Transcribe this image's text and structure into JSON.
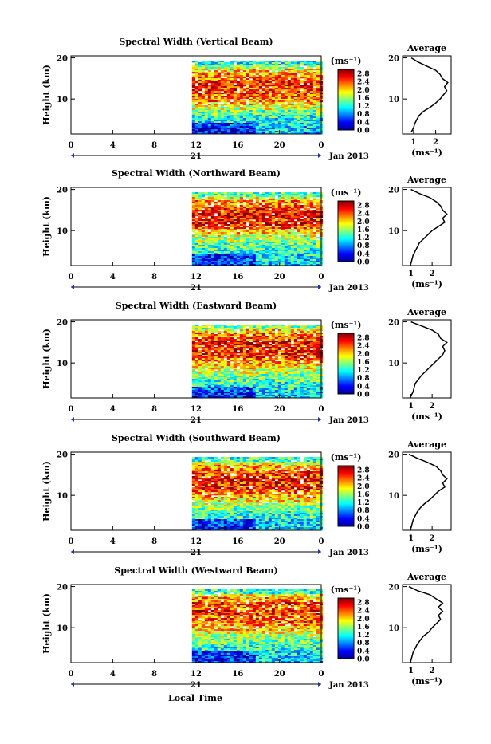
{
  "figure": {
    "x_axis_label": "Local Time",
    "height_label": "Height (km)",
    "unit_label": "(ms⁻¹)",
    "avg_title": "Average",
    "date_label": "Jan 2013",
    "day_label": "21"
  },
  "chart_data": [
    {
      "type": "heatmap",
      "title": "Spectral Width (Vertical Beam)",
      "xlabel": "Local Time",
      "ylabel": "Height (km)",
      "x_ticks": [
        "0",
        "4",
        "8",
        "12",
        "16",
        "20",
        "0"
      ],
      "y_ticks": [
        "20",
        "10"
      ],
      "xlim": [
        0,
        24
      ],
      "ylim": [
        1.5,
        20.5
      ],
      "data_start_hour": 11.6,
      "colorbar": {
        "label": "(ms⁻¹)",
        "range": [
          0.0,
          3.0
        ],
        "ticks": [
          "2.8",
          "2.4",
          "2.0",
          "1.6",
          "1.2",
          "0.8",
          "0.4",
          "0.0"
        ]
      },
      "average_profile": {
        "title": "Average",
        "xlabel": "(ms⁻¹)",
        "x_ticks": [
          "1",
          "2"
        ],
        "xlim": [
          0.5,
          2.7
        ],
        "height_km": [
          2,
          3,
          4,
          5,
          6,
          7,
          8,
          9,
          10,
          11,
          12,
          13,
          14,
          15,
          16,
          17,
          18,
          19,
          20
        ],
        "width_ms": [
          0.9,
          1.0,
          1.05,
          1.15,
          1.25,
          1.45,
          1.75,
          2.0,
          2.2,
          2.35,
          2.5,
          2.4,
          2.55,
          2.3,
          2.2,
          2.0,
          1.6,
          1.2,
          0.9
        ]
      }
    },
    {
      "type": "heatmap",
      "title": "Spectral Width (Northward Beam)",
      "xlabel": "Local Time",
      "ylabel": "Height (km)",
      "x_ticks": [
        "0",
        "4",
        "8",
        "12",
        "16",
        "20",
        "0"
      ],
      "y_ticks": [
        "20",
        "10"
      ],
      "xlim": [
        0,
        24
      ],
      "ylim": [
        1.5,
        20.5
      ],
      "data_start_hour": 11.6,
      "colorbar": {
        "label": "(ms⁻¹)",
        "range": [
          0.0,
          3.0
        ],
        "ticks": [
          "2.8",
          "2.4",
          "2.0",
          "1.6",
          "1.2",
          "0.8",
          "0.4",
          "0.0"
        ]
      },
      "average_profile": {
        "title": "Average",
        "xlabel": "(ms⁻¹)",
        "x_ticks": [
          "1",
          "2"
        ],
        "xlim": [
          0.6,
          2.9
        ],
        "height_km": [
          2,
          3,
          4,
          5,
          6,
          7,
          8,
          9,
          10,
          11,
          12,
          13,
          14,
          15,
          16,
          17,
          18,
          19,
          20
        ],
        "width_ms": [
          1.0,
          1.05,
          1.1,
          1.2,
          1.3,
          1.4,
          1.6,
          1.8,
          2.0,
          2.3,
          2.6,
          2.5,
          2.7,
          2.5,
          2.4,
          2.2,
          1.9,
          1.4,
          1.0
        ]
      }
    },
    {
      "type": "heatmap",
      "title": "Spectral Width (Eastward Beam)",
      "xlabel": "Local Time",
      "ylabel": "Height (km)",
      "x_ticks": [
        "0",
        "4",
        "8",
        "12",
        "16",
        "20",
        "0"
      ],
      "y_ticks": [
        "20",
        "10"
      ],
      "xlim": [
        0,
        24
      ],
      "ylim": [
        1.5,
        20.5
      ],
      "data_start_hour": 11.6,
      "colorbar": {
        "label": "(ms⁻¹)",
        "range": [
          0.0,
          3.0
        ],
        "ticks": [
          "2.8",
          "2.4",
          "2.0",
          "1.6",
          "1.2",
          "0.8",
          "0.4",
          "0.0"
        ]
      },
      "average_profile": {
        "title": "Average",
        "xlabel": "(ms⁻¹)",
        "x_ticks": [
          "1",
          "2"
        ],
        "xlim": [
          0.6,
          2.9
        ],
        "height_km": [
          2,
          3,
          4,
          5,
          6,
          7,
          8,
          9,
          10,
          11,
          12,
          13,
          14,
          15,
          16,
          17,
          18,
          19,
          20
        ],
        "width_ms": [
          1.0,
          1.1,
          1.15,
          1.2,
          1.35,
          1.5,
          1.7,
          1.9,
          2.1,
          2.3,
          2.5,
          2.6,
          2.5,
          2.7,
          2.4,
          2.3,
          2.0,
          1.5,
          1.0
        ]
      }
    },
    {
      "type": "heatmap",
      "title": "Spectral Width (Southward Beam)",
      "xlabel": "Local Time",
      "ylabel": "Height (km)",
      "x_ticks": [
        "0",
        "4",
        "8",
        "12",
        "16",
        "20",
        "0"
      ],
      "y_ticks": [
        "20",
        "10"
      ],
      "xlim": [
        0,
        24
      ],
      "ylim": [
        1.5,
        20.5
      ],
      "data_start_hour": 11.6,
      "colorbar": {
        "label": "(ms⁻¹)",
        "range": [
          0.0,
          3.0
        ],
        "ticks": [
          "2.8",
          "2.4",
          "2.0",
          "1.6",
          "1.2",
          "0.8",
          "0.4",
          "0.0"
        ]
      },
      "average_profile": {
        "title": "Average",
        "xlabel": "(ms⁻¹)",
        "x_ticks": [
          "1",
          "2"
        ],
        "xlim": [
          0.6,
          2.9
        ],
        "height_km": [
          2,
          3,
          4,
          5,
          6,
          7,
          8,
          9,
          10,
          11,
          12,
          13,
          14,
          15,
          16,
          17,
          18,
          19,
          20
        ],
        "width_ms": [
          1.0,
          1.05,
          1.1,
          1.2,
          1.3,
          1.45,
          1.65,
          1.9,
          2.1,
          2.3,
          2.6,
          2.5,
          2.7,
          2.5,
          2.4,
          2.2,
          1.8,
          1.3,
          0.9
        ]
      }
    },
    {
      "type": "heatmap",
      "title": "Spectral Width (Westward Beam)",
      "xlabel": "Local Time",
      "ylabel": "Height (km)",
      "x_ticks": [
        "0",
        "4",
        "8",
        "12",
        "16",
        "20",
        "0"
      ],
      "y_ticks": [
        "20",
        "10"
      ],
      "xlim": [
        0,
        24
      ],
      "ylim": [
        1.5,
        20.5
      ],
      "data_start_hour": 11.6,
      "colorbar": {
        "label": "(ms⁻¹)",
        "range": [
          0.0,
          3.0
        ],
        "ticks": [
          "2.8",
          "2.4",
          "2.0",
          "1.6",
          "1.2",
          "0.8",
          "0.4",
          "0.0"
        ]
      },
      "average_profile": {
        "title": "Average",
        "xlabel": "(ms⁻¹)",
        "x_ticks": [
          "1",
          "2"
        ],
        "xlim": [
          0.6,
          2.9
        ],
        "height_km": [
          2,
          3,
          4,
          5,
          6,
          7,
          8,
          9,
          10,
          11,
          12,
          13,
          14,
          15,
          16,
          17,
          18,
          19,
          20
        ],
        "width_ms": [
          1.0,
          1.05,
          1.1,
          1.2,
          1.3,
          1.45,
          1.6,
          1.85,
          2.0,
          2.2,
          2.4,
          2.3,
          2.5,
          2.3,
          2.5,
          2.2,
          1.9,
          1.3,
          0.9
        ]
      }
    }
  ]
}
